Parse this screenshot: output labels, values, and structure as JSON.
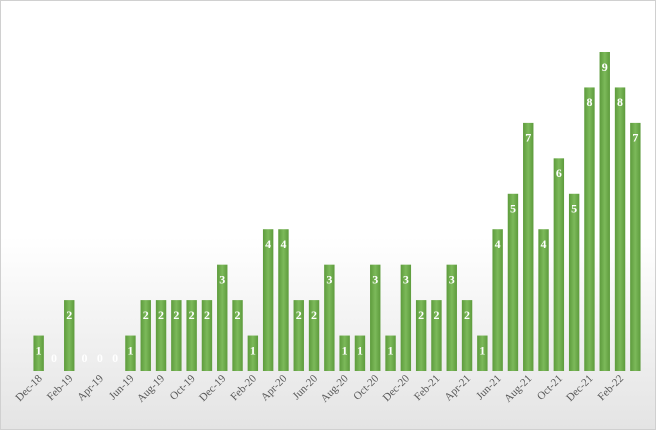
{
  "chart_data": {
    "type": "bar",
    "categories": [
      "Dec-18",
      null,
      "Feb-19",
      null,
      "Apr-19",
      null,
      "Jun-19",
      null,
      "Aug-19",
      null,
      "Oct-19",
      null,
      "Dec-19",
      null,
      "Feb-20",
      null,
      "Apr-20",
      null,
      "Jun-20",
      null,
      "Aug-20",
      null,
      "Oct-20",
      null,
      "Dec-20",
      null,
      "Feb-21",
      null,
      "Apr-21",
      null,
      "Jun-21",
      null,
      "Aug-21",
      null,
      "Oct-21",
      null,
      "Dec-21",
      null,
      "Feb-22",
      null
    ],
    "values": [
      1,
      0,
      2,
      0,
      0,
      0,
      1,
      2,
      2,
      2,
      2,
      2,
      3,
      2,
      1,
      4,
      4,
      2,
      2,
      3,
      1,
      1,
      3,
      1,
      3,
      2,
      2,
      3,
      2,
      1,
      4,
      5,
      7,
      4,
      6,
      5,
      8,
      9,
      8,
      7
    ],
    "color": "#6aa84f",
    "ylim": [
      0,
      9
    ]
  }
}
